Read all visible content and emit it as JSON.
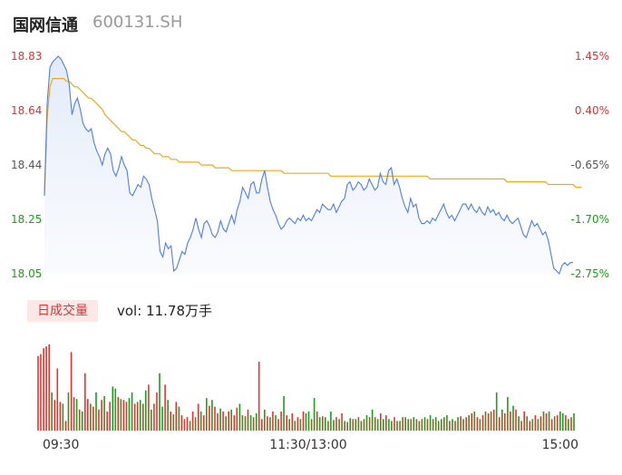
{
  "stock": {
    "name": "国网信通",
    "code": "600131.SH"
  },
  "volume_tab": "日成交量",
  "volume_text": "vol: 11.78万手",
  "colors": {
    "up": "#e6332e",
    "down": "#1aa01a",
    "price": "#4f7ee8",
    "avg": "#f2a81c",
    "neutral_axis": "#555555"
  },
  "chart_data": [
    {
      "type": "line",
      "y_ticks": [
        "18.83",
        "18.64",
        "18.44",
        "18.25",
        "18.05"
      ],
      "y_tick_colors": [
        "#e0332e",
        "#e0332e",
        "#555555",
        "#1aa01a",
        "#1aa01a"
      ],
      "pct_ticks": [
        "1.45%",
        "0.40%",
        "-0.65%",
        "-1.70%",
        "-2.75%"
      ],
      "pct_tick_colors": [
        "#e0332e",
        "#e0332e",
        "#555555",
        "#1aa01a",
        "#1aa01a"
      ],
      "ylim": [
        18.05,
        18.83
      ],
      "x_ticks": [
        "09:30",
        "11:30/13:00",
        "15:00"
      ],
      "series": [
        {
          "values": [
            18.33,
            18.66,
            18.79,
            18.81,
            18.82,
            18.83,
            18.82,
            18.8,
            18.78,
            18.73,
            18.62,
            18.66,
            18.68,
            18.64,
            18.59,
            18.57,
            18.56,
            18.57,
            18.52,
            18.49,
            18.47,
            18.44,
            18.48,
            18.5,
            18.48,
            18.42,
            18.4,
            18.43,
            18.47,
            18.44,
            18.42,
            18.34,
            18.33,
            18.35,
            18.37,
            18.36,
            18.4,
            18.39,
            18.37,
            18.32,
            18.28,
            18.24,
            18.13,
            18.11,
            18.16,
            18.14,
            18.15,
            18.06,
            18.07,
            18.1,
            18.13,
            18.12,
            18.16,
            18.18,
            18.21,
            18.25,
            18.21,
            18.18,
            18.23,
            18.24,
            18.22,
            18.19,
            18.18,
            18.2,
            18.24,
            18.21,
            18.2,
            18.23,
            18.26,
            18.23,
            18.28,
            18.31,
            18.36,
            18.34,
            18.32,
            18.37,
            18.38,
            18.34,
            18.34,
            18.39,
            18.42,
            18.36,
            18.31,
            18.28,
            18.26,
            18.23,
            18.21,
            18.22,
            18.24,
            18.25,
            18.24,
            18.23,
            18.25,
            18.24,
            18.26,
            18.24,
            18.25,
            18.24,
            18.26,
            18.28,
            18.27,
            18.3,
            18.29,
            18.28,
            18.28,
            18.3,
            18.27,
            18.29,
            18.31,
            18.32,
            18.37,
            18.38,
            18.35,
            18.36,
            18.38,
            18.37,
            18.35,
            18.36,
            18.39,
            18.37,
            18.35,
            18.36,
            18.41,
            18.38,
            18.37,
            18.42,
            18.43,
            18.37,
            18.39,
            18.36,
            18.32,
            18.29,
            18.27,
            18.32,
            18.29,
            18.3,
            18.25,
            18.23,
            18.23,
            18.24,
            18.23,
            18.25,
            18.24,
            18.26,
            18.28,
            18.3,
            18.27,
            18.25,
            18.26,
            18.24,
            18.26,
            18.28,
            18.3,
            18.3,
            18.28,
            18.3,
            18.28,
            18.27,
            18.29,
            18.27,
            18.26,
            18.29,
            18.27,
            18.28,
            18.26,
            18.27,
            18.25,
            18.24,
            18.26,
            18.24,
            18.23,
            18.24,
            18.25,
            18.22,
            18.19,
            18.18,
            18.21,
            18.24,
            18.22,
            18.23,
            18.21,
            18.19,
            18.2,
            18.17,
            18.12,
            18.07,
            18.06,
            18.05,
            18.08,
            18.09,
            18.08,
            18.09,
            18.09
          ]
        },
        {
          "values": [
            18.33,
            18.61,
            18.72,
            18.75,
            18.75,
            18.75,
            18.75,
            18.75,
            18.74,
            18.74,
            18.73,
            18.72,
            18.72,
            18.71,
            18.7,
            18.69,
            18.68,
            18.68,
            18.67,
            18.66,
            18.65,
            18.64,
            18.62,
            18.61,
            18.6,
            18.59,
            18.58,
            18.57,
            18.56,
            18.56,
            18.55,
            18.54,
            18.53,
            18.53,
            18.52,
            18.51,
            18.51,
            18.5,
            18.5,
            18.49,
            18.48,
            18.48,
            18.48,
            18.47,
            18.47,
            18.47,
            18.46,
            18.46,
            18.46,
            18.45,
            18.45,
            18.45,
            18.45,
            18.45,
            18.45,
            18.45,
            18.45,
            18.44,
            18.44,
            18.44,
            18.44,
            18.44,
            18.43,
            18.43,
            18.43,
            18.43,
            18.43,
            18.43,
            18.42,
            18.42,
            18.42,
            18.42,
            18.42,
            18.42,
            18.42,
            18.42,
            18.42,
            18.42,
            18.42,
            18.42,
            18.42,
            18.42,
            18.42,
            18.42,
            18.42,
            18.42,
            18.42,
            18.41,
            18.41,
            18.41,
            18.41,
            18.41,
            18.41,
            18.41,
            18.41,
            18.41,
            18.41,
            18.41,
            18.41,
            18.41,
            18.41,
            18.41,
            18.41,
            18.41,
            18.4,
            18.4,
            18.4,
            18.4,
            18.4,
            18.4,
            18.4,
            18.4,
            18.4,
            18.4,
            18.4,
            18.4,
            18.4,
            18.4,
            18.4,
            18.4,
            18.4,
            18.4,
            18.4,
            18.4,
            18.4,
            18.4,
            18.4,
            18.4,
            18.4,
            18.4,
            18.4,
            18.4,
            18.4,
            18.4,
            18.4,
            18.4,
            18.4,
            18.4,
            18.4,
            18.4,
            18.39,
            18.39,
            18.39,
            18.39,
            18.39,
            18.39,
            18.39,
            18.39,
            18.39,
            18.39,
            18.39,
            18.39,
            18.39,
            18.39,
            18.39,
            18.39,
            18.39,
            18.39,
            18.39,
            18.39,
            18.39,
            18.39,
            18.39,
            18.39,
            18.39,
            18.39,
            18.39,
            18.39,
            18.38,
            18.38,
            18.38,
            18.38,
            18.38,
            18.38,
            18.38,
            18.38,
            18.38,
            18.38,
            18.38,
            18.38,
            18.38,
            18.38,
            18.38,
            18.37,
            18.37,
            18.37,
            18.37,
            18.37,
            18.37,
            18.37,
            18.37,
            18.37,
            18.37,
            18.36,
            18.36,
            18.36
          ]
        }
      ]
    },
    {
      "type": "bar",
      "series": [
        {
          "values": [
            78,
            80,
            86,
            88,
            90,
            40,
            32,
            65,
            30,
            28,
            10,
            40,
            82,
            35,
            33,
            22,
            20,
            60,
            33,
            28,
            25,
            40,
            22,
            32,
            36,
            20,
            30,
            46,
            44,
            35,
            33,
            32,
            30,
            34,
            40,
            28,
            30,
            32,
            28,
            42,
            48,
            22,
            28,
            40,
            60,
            25,
            48,
            32,
            20,
            17,
            30,
            25,
            16,
            12,
            14,
            10,
            20,
            14,
            28,
            20,
            16,
            34,
            26,
            32,
            25,
            18,
            23,
            20,
            15,
            20,
            22,
            16,
            24,
            28,
            16,
            15,
            22,
            16,
            14,
            18,
            72,
            12,
            22,
            15,
            14,
            20,
            16,
            12,
            20,
            36,
            16,
            12,
            18,
            10,
            14,
            12,
            20,
            18,
            20,
            12,
            34,
            20,
            14,
            15,
            14,
            10,
            20,
            11,
            14,
            12,
            18,
            10,
            9,
            13,
            12,
            12,
            14,
            10,
            12,
            16,
            14,
            22,
            14,
            12,
            18,
            12,
            16,
            12,
            10,
            14,
            10,
            10,
            14,
            14,
            12,
            12,
            14,
            12,
            10,
            12,
            14,
            12,
            16,
            12,
            14,
            10,
            12,
            14,
            16,
            10,
            12,
            10,
            14,
            15,
            12,
            14,
            16,
            18,
            20,
            14,
            12,
            16,
            20,
            18,
            20,
            22,
            40,
            14,
            22,
            18,
            35,
            20,
            26,
            22,
            15,
            10,
            20,
            15,
            10,
            12,
            16,
            12,
            15,
            20,
            18,
            20,
            12,
            15,
            16,
            20,
            18,
            16,
            12,
            14,
            18
          ],
          "colors": [
            "up",
            "up",
            "up",
            "up",
            "up",
            "down",
            "up",
            "up",
            "up",
            "down",
            "up",
            "down",
            "up",
            "up",
            "down",
            "up",
            "down",
            "up",
            "up",
            "down",
            "up",
            "down",
            "up",
            "up",
            "down",
            "up",
            "up",
            "down",
            "down",
            "up",
            "down",
            "up",
            "up",
            "down",
            "down",
            "up",
            "up",
            "down",
            "up",
            "down",
            "up",
            "down",
            "up",
            "up",
            "down",
            "down",
            "up",
            "down",
            "up",
            "down",
            "up",
            "down",
            "up",
            "up",
            "up",
            "down",
            "up",
            "down",
            "up",
            "down",
            "up",
            "down",
            "up",
            "down",
            "up",
            "up",
            "down",
            "up",
            "down",
            "up",
            "down",
            "up",
            "up",
            "down",
            "up",
            "down",
            "up",
            "down",
            "up",
            "down",
            "up",
            "up",
            "down",
            "up",
            "down",
            "up",
            "down",
            "up",
            "up",
            "down",
            "up",
            "down",
            "up",
            "down",
            "up",
            "down",
            "up",
            "down",
            "down",
            "up",
            "down",
            "up",
            "down",
            "up",
            "down",
            "up",
            "down",
            "down",
            "up",
            "down",
            "up",
            "down",
            "up",
            "down",
            "up",
            "down",
            "up",
            "down",
            "up",
            "down",
            "up",
            "down",
            "up",
            "down",
            "up",
            "down",
            "up",
            "down",
            "down",
            "up",
            "down",
            "up",
            "down",
            "up",
            "down",
            "up",
            "down",
            "up",
            "down",
            "up",
            "down",
            "up",
            "down",
            "up",
            "down",
            "up",
            "down",
            "up",
            "down",
            "up",
            "down",
            "up",
            "down",
            "up",
            "down",
            "up",
            "down",
            "up",
            "down",
            "up",
            "down",
            "up",
            "down",
            "up",
            "down",
            "up",
            "down",
            "up",
            "down",
            "up",
            "down",
            "up",
            "down",
            "up",
            "down",
            "up",
            "up",
            "down",
            "up",
            "down",
            "up",
            "down",
            "up",
            "down",
            "up",
            "down",
            "up",
            "down",
            "up",
            "down",
            "down",
            "up",
            "down",
            "up",
            "down",
            "down"
          ]
        }
      ]
    }
  ]
}
